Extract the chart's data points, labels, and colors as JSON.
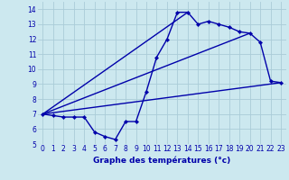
{
  "xlabel": "Graphe des températures (°c)",
  "bg_color": "#cce8ef",
  "grid_color": "#aaccd8",
  "line_color": "#0000aa",
  "xlim": [
    -0.5,
    23.5
  ],
  "ylim": [
    5,
    14.5
  ],
  "xticks": [
    0,
    1,
    2,
    3,
    4,
    5,
    6,
    7,
    8,
    9,
    10,
    11,
    12,
    13,
    14,
    15,
    16,
    17,
    18,
    19,
    20,
    21,
    22,
    23
  ],
  "yticks": [
    5,
    6,
    7,
    8,
    9,
    10,
    11,
    12,
    13,
    14
  ],
  "line1_x": [
    0,
    1,
    2,
    3,
    4,
    5,
    6,
    7,
    8,
    9,
    10,
    11,
    12,
    13,
    14,
    15,
    16,
    17,
    18,
    19,
    20,
    21,
    22,
    23
  ],
  "line1_y": [
    7.0,
    6.9,
    6.8,
    6.8,
    6.8,
    5.8,
    5.5,
    5.3,
    6.5,
    6.5,
    8.5,
    10.8,
    12.0,
    13.8,
    13.8,
    13.0,
    13.2,
    13.0,
    12.8,
    12.5,
    12.4,
    11.8,
    9.2,
    9.1
  ],
  "line2_x": [
    0,
    23
  ],
  "line2_y": [
    7.0,
    9.1
  ],
  "line3_x": [
    0,
    20
  ],
  "line3_y": [
    7.0,
    12.4
  ],
  "line4_x": [
    0,
    14
  ],
  "line4_y": [
    7.0,
    13.8
  ],
  "xlabel_fontsize": 6.5,
  "tick_fontsize": 5.5
}
